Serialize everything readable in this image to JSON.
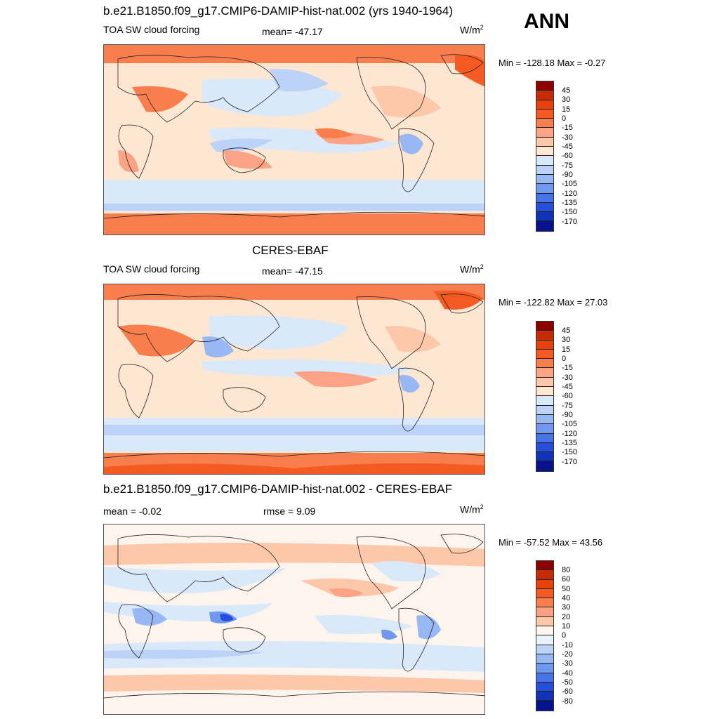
{
  "season": "ANN",
  "panels": [
    {
      "title": "b.e21.B1850.f09_g17.CMIP6-DAMIP-hist-nat.002 (yrs 1940-1964)",
      "left_label": "TOA SW cloud forcing",
      "center_label": "mean= -47.17",
      "unit_base": "W/m",
      "unit_exp": "2",
      "range_label": "Min = -128.18 Max =  -0.27",
      "colorbar_ticks": [
        "45",
        "30",
        "15",
        "0",
        "-15",
        "-30",
        "-45",
        "-60",
        "-75",
        "-90",
        "-105",
        "-120",
        "-135",
        "-150",
        "-170"
      ],
      "colors": [
        "#8b0000",
        "#c62c04",
        "#e8420c",
        "#f55a23",
        "#f87f4d",
        "#fba384",
        "#fdc8aa",
        "#fde6d2",
        "#dae9fa",
        "#bcd2f7",
        "#98b8f3",
        "#6f98ee",
        "#4874e8",
        "#254fda",
        "#1233b6",
        "#06138c"
      ]
    },
    {
      "title": "CERES-EBAF",
      "left_label": "TOA SW cloud forcing",
      "center_label": "mean= -47.15",
      "unit_base": "W/m",
      "unit_exp": "2",
      "range_label": "Min = -122.82 Max =  27.03",
      "colorbar_ticks": [
        "45",
        "30",
        "15",
        "0",
        "-15",
        "-30",
        "-45",
        "-60",
        "-75",
        "-90",
        "-105",
        "-120",
        "-135",
        "-150",
        "-170"
      ],
      "colors": [
        "#8b0000",
        "#c62c04",
        "#e8420c",
        "#f55a23",
        "#f87f4d",
        "#fba384",
        "#fdc8aa",
        "#fde6d2",
        "#dae9fa",
        "#bcd2f7",
        "#98b8f3",
        "#6f98ee",
        "#4874e8",
        "#254fda",
        "#1233b6",
        "#06138c"
      ]
    },
    {
      "title": "b.e21.B1850.f09_g17.CMIP6-DAMIP-hist-nat.002 - CERES-EBAF",
      "left_label": "mean =  -0.02",
      "center_label": "rmse =   9.09",
      "unit_base": "W/m",
      "unit_exp": "2",
      "range_label": "Min = -57.52 Max =  43.56",
      "colorbar_ticks": [
        "80",
        "60",
        "50",
        "40",
        "30",
        "20",
        "10",
        "0",
        "-10",
        "-20",
        "-30",
        "-40",
        "-50",
        "-60",
        "-80"
      ],
      "colors": [
        "#8b0000",
        "#c62c04",
        "#e8420c",
        "#f55a23",
        "#f87f4d",
        "#fba384",
        "#fdc8aa",
        "#fdf4ee",
        "#eaf2fd",
        "#bcd2f7",
        "#98b8f3",
        "#6f98ee",
        "#4874e8",
        "#254fda",
        "#1233b6",
        "#06138c"
      ]
    }
  ]
}
